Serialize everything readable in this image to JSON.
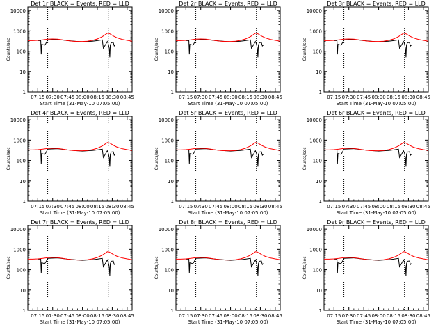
{
  "panel_titles": [
    "Det 1r BLACK = Events, RED = LLD",
    "Det 2r BLACK = Events, RED = LLD",
    "Det 3r BLACK = Events, RED = LLD",
    "Det 4r BLACK = Events, RED = LLD",
    "Det 5r BLACK = Events, RED = LLD",
    "Det 6r BLACK = Events, RED = LLD",
    "Det 7r BLACK = Events, RED = LLD",
    "Det 8r BLACK = Events, RED = LLD",
    "Det 9r BLACK = Events, RED = LLD"
  ],
  "xlabel": "Start Time (31-May-10 07:05:00)",
  "ylabel": "Counts/sec",
  "x_tick_labels": [
    "07:15",
    "07:30",
    "07:45",
    "08:00",
    "08:15",
    "08:30",
    "08:45"
  ],
  "y_tick_labels": [
    "1",
    "10",
    "100",
    "1000",
    "10000"
  ],
  "colors": {
    "events": "#000000",
    "lld": "#ff0000",
    "axes": "#000000"
  },
  "chart_data": {
    "type": "line",
    "layout": "3x3 grid of panels",
    "x_unit": "minutes after 07:05:00",
    "xlim": [
      0,
      105
    ],
    "ylim": [
      1,
      15000
    ],
    "y_scale": "log",
    "x_ticks": [
      10,
      25,
      40,
      55,
      70,
      85,
      100
    ],
    "y_ticks": [
      1,
      10,
      100,
      1000,
      10000
    ],
    "vertical_dotted_lines": [
      20,
      81
    ],
    "series": [
      {
        "legend": "BLACK = Events",
        "x": [
          0,
          5,
          10,
          13,
          13.5,
          14,
          17,
          18,
          20,
          30,
          40,
          50,
          55,
          60,
          65,
          70,
          75,
          76,
          78,
          80,
          81,
          82,
          82.5,
          83,
          84,
          86,
          87,
          88
        ],
        "y": [
          null,
          null,
          330,
          330,
          70,
          220,
          200,
          230,
          360,
          380,
          330,
          300,
          290,
          300,
          310,
          330,
          360,
          140,
          200,
          300,
          230,
          140,
          50,
          200,
          260,
          270,
          180,
          200
        ]
      },
      {
        "legend": "RED = LLD",
        "x": [
          0,
          5,
          10,
          15,
          20,
          25,
          30,
          35,
          40,
          45,
          50,
          55,
          60,
          65,
          70,
          75,
          78,
          80,
          82,
          84,
          86,
          90,
          95,
          100,
          105
        ],
        "y": [
          330,
          330,
          340,
          360,
          390,
          400,
          390,
          360,
          330,
          310,
          300,
          300,
          310,
          340,
          400,
          520,
          650,
          760,
          740,
          650,
          560,
          450,
          380,
          340,
          310
        ]
      }
    ]
  }
}
